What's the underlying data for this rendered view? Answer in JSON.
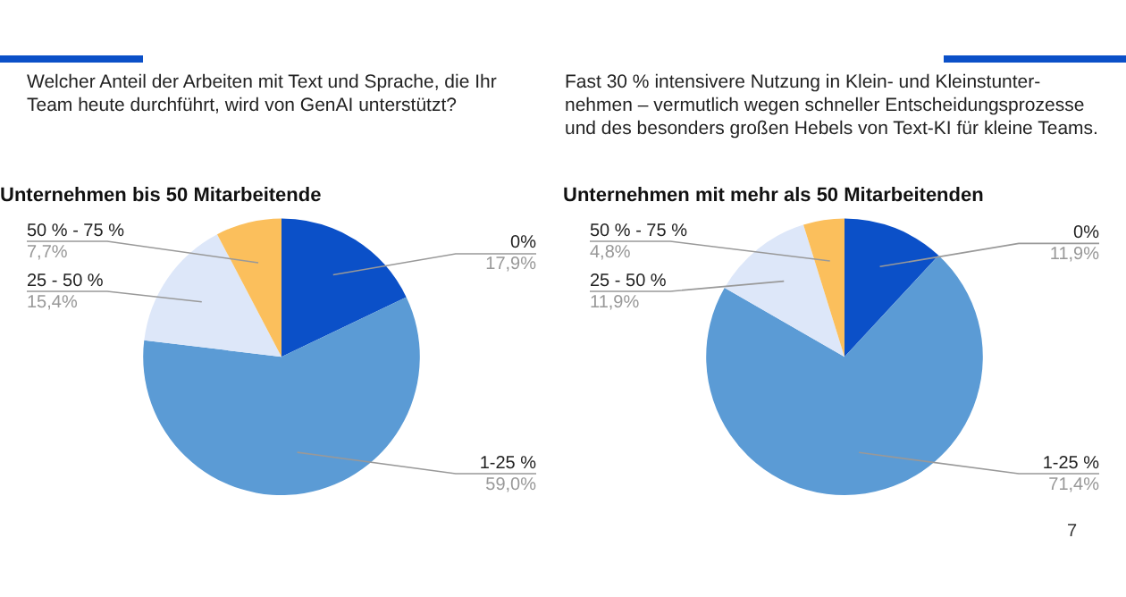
{
  "chart_data": [
    {
      "type": "pie",
      "title": "Unternehmen bis 50 Mitarbeitende",
      "annotations": [
        "Welcher Anteil der Arbeiten mit Text und Sprache, die Ihr Team heute durchführt, wird von GenAI unterstützt?"
      ],
      "categories": [
        "0%",
        "1-25 %",
        "25 - 50 %",
        "50 % - 75 %"
      ],
      "values": [
        17.9,
        59.0,
        15.4,
        7.7
      ],
      "value_labels": [
        "17,9%",
        "59,0%",
        "15,4%",
        "7,7%"
      ],
      "colors": [
        "#0b50c8",
        "#5b9bd5",
        "#dde7f9",
        "#fbbf5c"
      ]
    },
    {
      "type": "pie",
      "title": "Unternehmen mit mehr als 50 Mitarbeitenden",
      "annotations": [
        "Fast 30 % intensivere Nutzung in Klein- und Kleinstunter-nehmen – vermutlich wegen schneller Entscheidungsprozesse und des besonders großen Hebels von Text-KI für kleine Teams.",
        "7"
      ],
      "categories": [
        "0%",
        "1-25 %",
        "25 - 50 %",
        "50 % - 75 %"
      ],
      "values": [
        11.9,
        71.4,
        11.9,
        4.8
      ],
      "value_labels": [
        "11,9%",
        "71,4%",
        "11,9%",
        "4,8%"
      ],
      "colors": [
        "#0b50c8",
        "#5b9bd5",
        "#dde7f9",
        "#fbbf5c"
      ]
    }
  ]
}
